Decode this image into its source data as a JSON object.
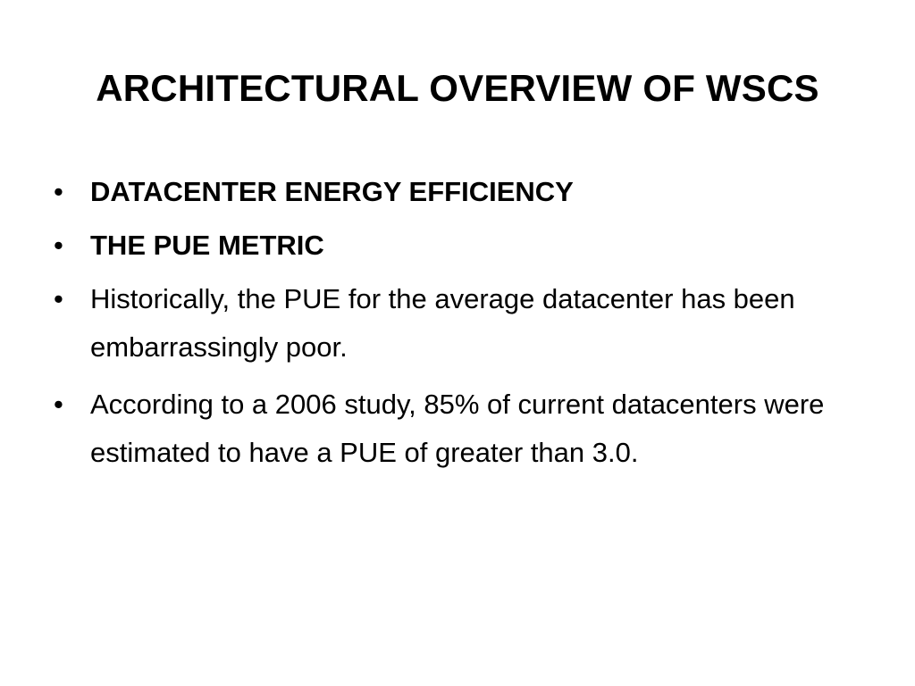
{
  "slide": {
    "title": "ARCHITECTURAL OVERVIEW OF WSCS",
    "bullet_symbol": "•",
    "bullets": [
      {
        "text": "DATACENTER ENERGY EFFICIENCY"
      },
      {
        "text": "THE PUE METRIC"
      },
      {
        "text": "Historically, the PUE for the average datacenter has been embarrassingly poor."
      },
      {
        "text": "According to a 2006 study, 85% of current datacenters were estimated to have a PUE of greater than 3.0."
      }
    ]
  }
}
